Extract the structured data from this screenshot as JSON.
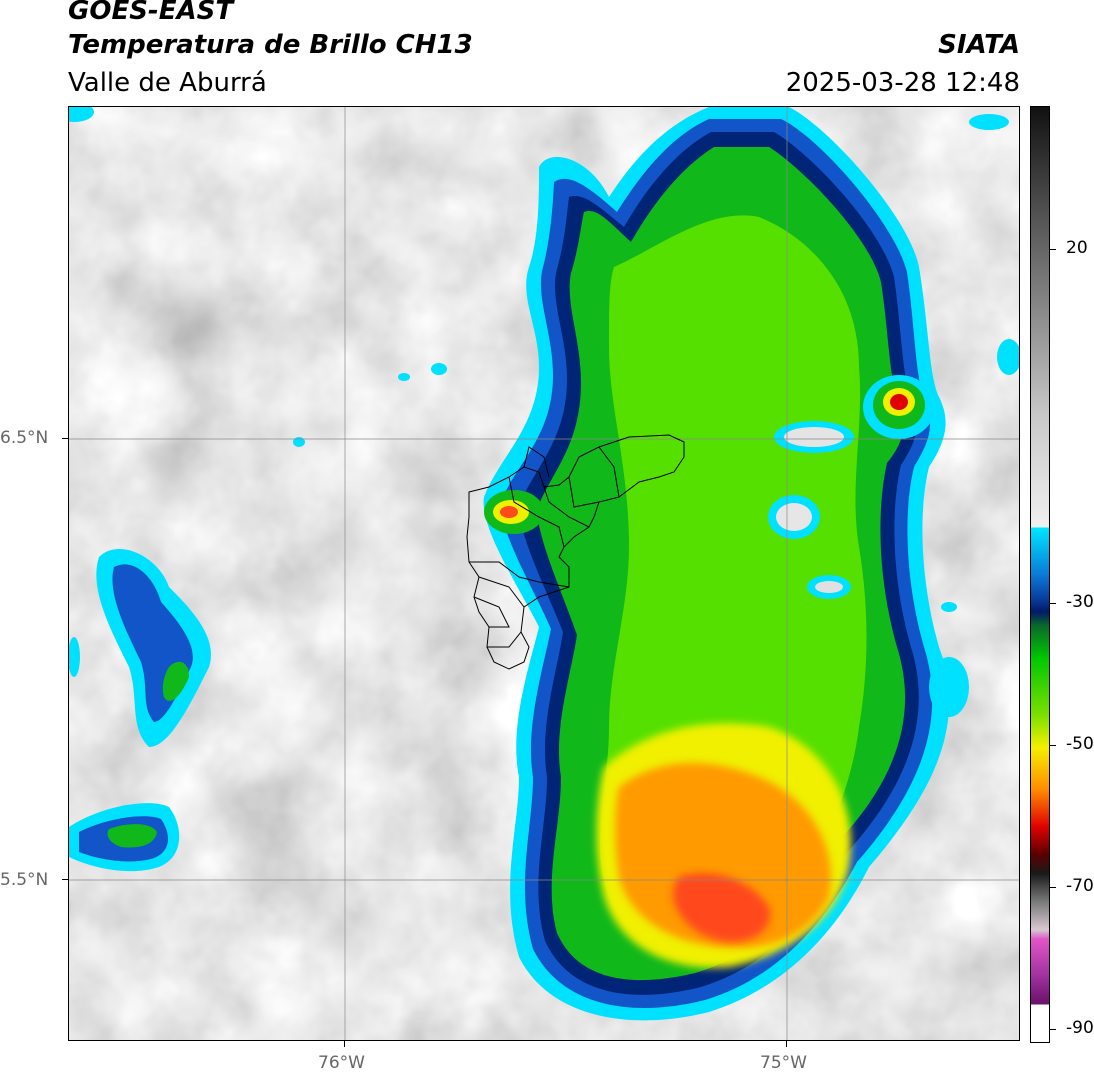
{
  "header": {
    "satellite": "GOES-EAST",
    "product": "Temperatura de Brillo CH13",
    "organization": "SIATA",
    "region": "Valle de Aburrá",
    "datetime": "2025-03-28 12:48"
  },
  "map": {
    "lat_labels": [
      "6.5°N",
      "5.5°N"
    ],
    "lon_labels": [
      "76°W",
      "75°W"
    ]
  },
  "colorbar": {
    "ticks": [
      "20",
      "-30",
      "-50",
      "-70",
      "-90"
    ],
    "colors": {
      "warm_dark": "#1a1a1a",
      "warm_light": "#f2f2f2",
      "cyan": "#00e6ff",
      "blue": "#0a3fa0",
      "dark_blue": "#001a66",
      "green": "#00c800",
      "yellow": "#f5f000",
      "orange": "#ff8c00",
      "red": "#e00000",
      "magenta": "#e055c8",
      "purple": "#8a1a8a"
    }
  }
}
